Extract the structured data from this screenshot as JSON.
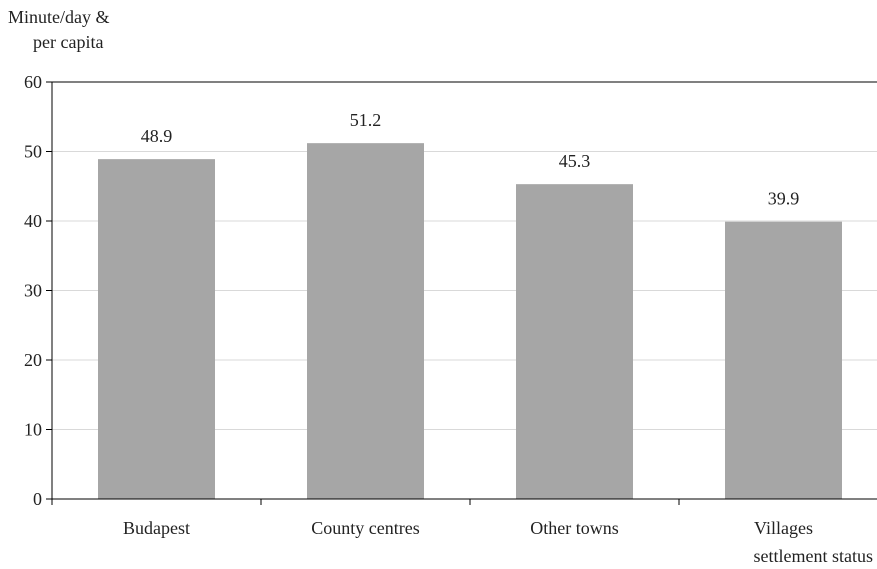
{
  "chart_data": {
    "type": "bar",
    "ylabel_line1": "Minute/day &",
    "ylabel_line2": "per capita",
    "xlabel": "settlement status",
    "categories": [
      "Budapest",
      "County centres",
      "Other towns",
      "Villages"
    ],
    "values": [
      48.9,
      51.2,
      45.3,
      39.9
    ],
    "value_labels": [
      "48.9",
      "51.2",
      "45.3",
      "39.9"
    ],
    "ylim": [
      0,
      60
    ],
    "yticks": [
      0,
      10,
      20,
      30,
      40,
      50,
      60
    ],
    "grid": true,
    "bar_color": "#a6a6a6",
    "grid_color": "#d9d9d9",
    "axis_color": "#000000"
  }
}
